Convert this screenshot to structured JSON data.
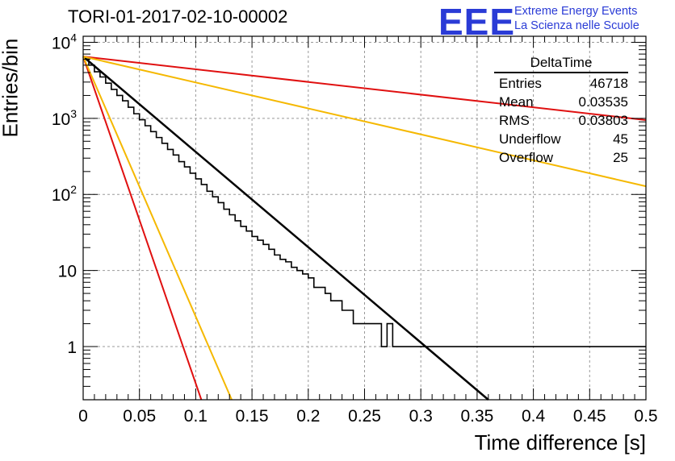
{
  "title": "TORI-01-2017-02-10-00002",
  "logo": {
    "mark": "EEE",
    "line1": "Extreme Energy Events",
    "line2": "La Scienza nelle Scuole",
    "color": "#2a3bd6"
  },
  "stats_box": {
    "name": "DeltaTime",
    "rows": [
      {
        "label": "Entries",
        "value": "46718"
      },
      {
        "label": "Mean",
        "value": "0.03535"
      },
      {
        "label": "RMS",
        "value": "0.03803"
      },
      {
        "label": "Underflow",
        "value": "45"
      },
      {
        "label": "Overflow",
        "value": "25"
      }
    ]
  },
  "chart_data": {
    "type": "line",
    "title": "TORI-01-2017-02-10-00002",
    "xlabel": "Time difference [s]",
    "ylabel": "Entries/bin",
    "xlim": [
      0,
      0.5
    ],
    "ylim": [
      0.2,
      12000
    ],
    "yscale": "log",
    "grid": true,
    "x_ticks": [
      "0",
      "0.05",
      "0.1",
      "0.15",
      "0.2",
      "0.25",
      "0.3",
      "0.35",
      "0.4",
      "0.45",
      "0.5"
    ],
    "y_ticks": [
      {
        "value": 1,
        "label": "1"
      },
      {
        "value": 10,
        "label": "10"
      },
      {
        "value": 100,
        "label": "10^2"
      },
      {
        "value": 1000,
        "label": "10^3"
      },
      {
        "value": 10000,
        "label": "10^4"
      }
    ],
    "histogram": {
      "bin_width": 0.005,
      "color": "#000000",
      "bins": [
        {
          "x": 0.0,
          "y": 6000
        },
        {
          "x": 0.005,
          "y": 5000
        },
        {
          "x": 0.01,
          "y": 4100
        },
        {
          "x": 0.015,
          "y": 3500
        },
        {
          "x": 0.02,
          "y": 2900
        },
        {
          "x": 0.025,
          "y": 2400
        },
        {
          "x": 0.03,
          "y": 2000
        },
        {
          "x": 0.035,
          "y": 1700
        },
        {
          "x": 0.04,
          "y": 1400
        },
        {
          "x": 0.045,
          "y": 1150
        },
        {
          "x": 0.05,
          "y": 960
        },
        {
          "x": 0.055,
          "y": 800
        },
        {
          "x": 0.06,
          "y": 670
        },
        {
          "x": 0.065,
          "y": 560
        },
        {
          "x": 0.07,
          "y": 470
        },
        {
          "x": 0.075,
          "y": 390
        },
        {
          "x": 0.08,
          "y": 330
        },
        {
          "x": 0.085,
          "y": 270
        },
        {
          "x": 0.09,
          "y": 230
        },
        {
          "x": 0.095,
          "y": 190
        },
        {
          "x": 0.1,
          "y": 160
        },
        {
          "x": 0.105,
          "y": 135
        },
        {
          "x": 0.11,
          "y": 110
        },
        {
          "x": 0.115,
          "y": 93
        },
        {
          "x": 0.12,
          "y": 78
        },
        {
          "x": 0.125,
          "y": 64
        },
        {
          "x": 0.13,
          "y": 54
        },
        {
          "x": 0.135,
          "y": 45
        },
        {
          "x": 0.14,
          "y": 38
        },
        {
          "x": 0.145,
          "y": 33
        },
        {
          "x": 0.15,
          "y": 28
        },
        {
          "x": 0.155,
          "y": 25
        },
        {
          "x": 0.16,
          "y": 22
        },
        {
          "x": 0.165,
          "y": 19
        },
        {
          "x": 0.17,
          "y": 16
        },
        {
          "x": 0.175,
          "y": 14
        },
        {
          "x": 0.18,
          "y": 13
        },
        {
          "x": 0.185,
          "y": 11
        },
        {
          "x": 0.19,
          "y": 10
        },
        {
          "x": 0.195,
          "y": 9
        },
        {
          "x": 0.2,
          "y": 8
        },
        {
          "x": 0.205,
          "y": 6
        },
        {
          "x": 0.21,
          "y": 6
        },
        {
          "x": 0.215,
          "y": 5
        },
        {
          "x": 0.22,
          "y": 4
        },
        {
          "x": 0.225,
          "y": 4
        },
        {
          "x": 0.23,
          "y": 3
        },
        {
          "x": 0.235,
          "y": 3
        },
        {
          "x": 0.24,
          "y": 2
        },
        {
          "x": 0.245,
          "y": 2
        },
        {
          "x": 0.25,
          "y": 2
        },
        {
          "x": 0.255,
          "y": 2
        },
        {
          "x": 0.26,
          "y": 2
        },
        {
          "x": 0.265,
          "y": 1
        },
        {
          "x": 0.27,
          "y": 2
        },
        {
          "x": 0.275,
          "y": 1
        },
        {
          "x": 0.28,
          "y": 1
        },
        {
          "x": 0.285,
          "y": 1
        },
        {
          "x": 0.29,
          "y": 1
        },
        {
          "x": 0.295,
          "y": 1
        },
        {
          "x": 0.3,
          "y": 1
        },
        {
          "x": 0.305,
          "y": 1
        },
        {
          "x": 0.31,
          "y": 1
        },
        {
          "x": 0.315,
          "y": 1
        },
        {
          "x": 0.32,
          "y": 1
        },
        {
          "x": 0.325,
          "y": 1
        },
        {
          "x": 0.33,
          "y": 1
        },
        {
          "x": 0.335,
          "y": 1
        },
        {
          "x": 0.34,
          "y": 1
        },
        {
          "x": 0.345,
          "y": 1
        },
        {
          "x": 0.35,
          "y": 1
        },
        {
          "x": 0.355,
          "y": 1
        },
        {
          "x": 0.36,
          "y": 1
        },
        {
          "x": 0.365,
          "y": 1
        },
        {
          "x": 0.37,
          "y": 1
        },
        {
          "x": 0.375,
          "y": 1
        },
        {
          "x": 0.38,
          "y": 1
        },
        {
          "x": 0.385,
          "y": 1
        },
        {
          "x": 0.39,
          "y": 1
        },
        {
          "x": 0.395,
          "y": 1
        },
        {
          "x": 0.4,
          "y": 1
        },
        {
          "x": 0.405,
          "y": 1
        },
        {
          "x": 0.41,
          "y": 1
        },
        {
          "x": 0.415,
          "y": 1
        },
        {
          "x": 0.42,
          "y": 1
        },
        {
          "x": 0.425,
          "y": 1
        },
        {
          "x": 0.43,
          "y": 1
        },
        {
          "x": 0.435,
          "y": 1
        },
        {
          "x": 0.44,
          "y": 1
        },
        {
          "x": 0.445,
          "y": 1
        },
        {
          "x": 0.45,
          "y": 1
        },
        {
          "x": 0.455,
          "y": 1
        },
        {
          "x": 0.46,
          "y": 1
        },
        {
          "x": 0.465,
          "y": 1
        },
        {
          "x": 0.47,
          "y": 1
        },
        {
          "x": 0.475,
          "y": 1
        },
        {
          "x": 0.48,
          "y": 1
        },
        {
          "x": 0.485,
          "y": 1
        },
        {
          "x": 0.49,
          "y": 1
        },
        {
          "x": 0.495,
          "y": 1
        }
      ]
    },
    "lines": [
      {
        "color": "#000000",
        "x": [
          0.0,
          0.36
        ],
        "y": [
          6500,
          0.2
        ]
      },
      {
        "color": "#e01010",
        "x": [
          0.0,
          0.105
        ],
        "y": [
          6500,
          0.2
        ]
      },
      {
        "color": "#f5b800",
        "x": [
          0.0,
          0.132
        ],
        "y": [
          6500,
          0.2
        ]
      },
      {
        "color": "#e01010",
        "x": [
          0.0,
          0.5
        ],
        "y": [
          6500,
          950
        ]
      },
      {
        "color": "#f5b800",
        "x": [
          0.0,
          0.5
        ],
        "y": [
          6500,
          128
        ]
      }
    ]
  }
}
